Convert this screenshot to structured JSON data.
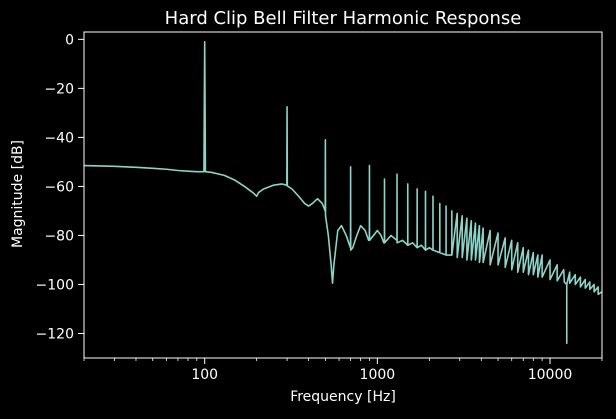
{
  "chart_data": {
    "type": "line",
    "title": "Hard Clip Bell Filter Harmonic Response",
    "xlabel": "Frequency [Hz]",
    "ylabel": "Magnitude [dB]",
    "x_scale": "log",
    "xlim": [
      20,
      20000
    ],
    "ylim": [
      -130,
      3
    ],
    "x_ticks": [
      100,
      1000,
      10000
    ],
    "x_tick_labels": [
      "100",
      "1000",
      "10000"
    ],
    "y_ticks": [
      0,
      -20,
      -40,
      -60,
      -80,
      -100,
      -120
    ],
    "y_tick_labels": [
      "0",
      "−20",
      "−40",
      "−60",
      "−80",
      "−100",
      "−120"
    ],
    "grid": false,
    "colors": {
      "background": "#000000",
      "line": "#8dd3c7",
      "axes": "#ffffff"
    },
    "series": [
      {
        "points": [
          [
            20,
            -51.5
          ],
          [
            30,
            -51.8
          ],
          [
            40,
            -52.2
          ],
          [
            50,
            -52.6
          ],
          [
            60,
            -53.0
          ],
          [
            70,
            -53.5
          ],
          [
            80,
            -53.8
          ],
          [
            90,
            -54.0
          ],
          [
            95,
            -54.0
          ],
          [
            99,
            -54.0
          ],
          [
            100,
            -1.0
          ],
          [
            101,
            -54.0
          ],
          [
            110,
            -54.3
          ],
          [
            130,
            -55.5
          ],
          [
            150,
            -57.5
          ],
          [
            170,
            -60.0
          ],
          [
            190,
            -62.5
          ],
          [
            200,
            -64.0
          ],
          [
            205,
            -62.5
          ],
          [
            220,
            -61.0
          ],
          [
            250,
            -59.5
          ],
          [
            280,
            -59.0
          ],
          [
            299,
            -59.5
          ],
          [
            300,
            -27.5
          ],
          [
            301,
            -59.8
          ],
          [
            320,
            -61.0
          ],
          [
            350,
            -64.0
          ],
          [
            380,
            -67.0
          ],
          [
            400,
            -68.0
          ],
          [
            420,
            -67.0
          ],
          [
            450,
            -65.0
          ],
          [
            480,
            -67.0
          ],
          [
            499,
            -70.0
          ],
          [
            500,
            -41.0
          ],
          [
            501,
            -72.0
          ],
          [
            520,
            -80.0
          ],
          [
            540,
            -92.0
          ],
          [
            550,
            -99.5
          ],
          [
            560,
            -92.0
          ],
          [
            590,
            -78.0
          ],
          [
            620,
            -76.0
          ],
          [
            660,
            -80.0
          ],
          [
            690,
            -84.0
          ],
          [
            699,
            -85.0
          ],
          [
            700,
            -52.0
          ],
          [
            701,
            -86.0
          ],
          [
            720,
            -85.0
          ],
          [
            760,
            -80.0
          ],
          [
            800,
            -76.0
          ],
          [
            850,
            -78.0
          ],
          [
            890,
            -82.0
          ],
          [
            899,
            -82.0
          ],
          [
            900,
            -51.5
          ],
          [
            901,
            -82.0
          ],
          [
            950,
            -80.0
          ],
          [
            1000,
            -78.0
          ],
          [
            1050,
            -80.0
          ],
          [
            1090,
            -83.0
          ],
          [
            1099,
            -83.0
          ],
          [
            1100,
            -57.0
          ],
          [
            1101,
            -83.0
          ],
          [
            1200,
            -80.0
          ],
          [
            1299,
            -82.0
          ],
          [
            1300,
            -55.0
          ],
          [
            1301,
            -83.0
          ],
          [
            1400,
            -82.0
          ],
          [
            1499,
            -84.0
          ],
          [
            1500,
            -59.0
          ],
          [
            1501,
            -84.0
          ],
          [
            1600,
            -83.0
          ],
          [
            1699,
            -85.0
          ],
          [
            1700,
            -61.0
          ],
          [
            1701,
            -85.0
          ],
          [
            1800,
            -84.0
          ],
          [
            1899,
            -86.0
          ],
          [
            1900,
            -62.0
          ],
          [
            1901,
            -86.0
          ],
          [
            2000,
            -85.0
          ],
          [
            2099,
            -86.0
          ],
          [
            2100,
            -64.0
          ],
          [
            2101,
            -86.0
          ],
          [
            2299,
            -87.0
          ],
          [
            2300,
            -67.0
          ],
          [
            2301,
            -87.0
          ],
          [
            2499,
            -88.0
          ],
          [
            2500,
            -68.0
          ],
          [
            2501,
            -88.0
          ],
          [
            2699,
            -88.0
          ],
          [
            2700,
            -70.0
          ],
          [
            2701,
            -88.0
          ],
          [
            2900,
            -71.0
          ],
          [
            2901,
            -89.0
          ],
          [
            3100,
            -72.0
          ],
          [
            3101,
            -89.0
          ],
          [
            3300,
            -73.0
          ],
          [
            3301,
            -90.0
          ],
          [
            3500,
            -74.0
          ],
          [
            3501,
            -90.0
          ],
          [
            3700,
            -75.0
          ],
          [
            3701,
            -90.0
          ],
          [
            3900,
            -76.0
          ],
          [
            3901,
            -91.0
          ],
          [
            4100,
            -77.0
          ],
          [
            4101,
            -91.0
          ],
          [
            4500,
            -78.0
          ],
          [
            4501,
            -92.0
          ],
          [
            5000,
            -79.0
          ],
          [
            5001,
            -92.0
          ],
          [
            5500,
            -81.0
          ],
          [
            5501,
            -93.0
          ],
          [
            6000,
            -82.0
          ],
          [
            6001,
            -94.0
          ],
          [
            6500,
            -83.0
          ],
          [
            6501,
            -95.0
          ],
          [
            7000,
            -85.0
          ],
          [
            7001,
            -95.0
          ],
          [
            7500,
            -86.0
          ],
          [
            7501,
            -96.0
          ],
          [
            8000,
            -87.0
          ],
          [
            8001,
            -96.0
          ],
          [
            8500,
            -88.0
          ],
          [
            8501,
            -97.0
          ],
          [
            9000,
            -88.0
          ],
          [
            9001,
            -97.0
          ],
          [
            10000,
            -90.0
          ],
          [
            10001,
            -98.0
          ],
          [
            11000,
            -92.0
          ],
          [
            11001,
            -98.5
          ],
          [
            12000,
            -94.0
          ],
          [
            12100,
            -99.0
          ],
          [
            12499,
            -100.0
          ],
          [
            12500,
            -124.0
          ],
          [
            12501,
            -100.0
          ],
          [
            13000,
            -95.0
          ],
          [
            13001,
            -99.5
          ],
          [
            14000,
            -96.0
          ],
          [
            14001,
            -100.0
          ],
          [
            15000,
            -97.0
          ],
          [
            15001,
            -101.0
          ],
          [
            16000,
            -98.0
          ],
          [
            16001,
            -101.5
          ],
          [
            17000,
            -99.0
          ],
          [
            17001,
            -102.0
          ],
          [
            18000,
            -100.0
          ],
          [
            18001,
            -103.0
          ],
          [
            19000,
            -101.0
          ],
          [
            19001,
            -104.0
          ],
          [
            20000,
            -103.0
          ]
        ]
      }
    ]
  }
}
